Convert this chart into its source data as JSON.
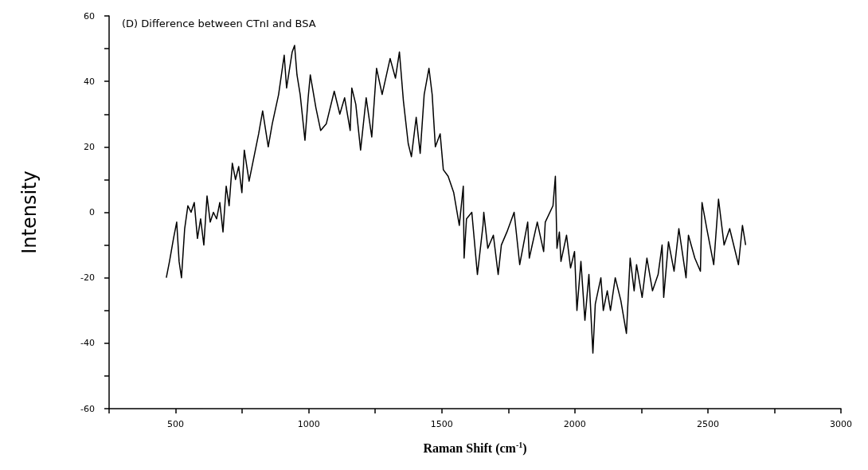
{
  "chart_data": {
    "type": "line",
    "title": "(D) Difference between CTnI and BSA",
    "xlabel": "Raman Shift (cm$^{-1}$)",
    "ylabel": "Intensity",
    "xlim": [
      250,
      3000
    ],
    "xticks": [
      {
        "value": 250,
        "label": null
      },
      500,
      {
        "value": 750,
        "label": null
      },
      1000,
      {
        "value": 1250,
        "label": null
      },
      1500,
      {
        "value": 1750,
        "label": null
      },
      2000,
      {
        "value": 2250,
        "label": null
      },
      2500,
      {
        "value": 2750,
        "label": null
      },
      3000
    ],
    "ylim": [
      -60,
      60
    ],
    "yticks": [
      -60,
      {
        "value": -50,
        "label": null
      },
      -40,
      {
        "value": -30,
        "label": null
      },
      -20,
      {
        "value": -10,
        "label": null
      },
      0,
      {
        "value": 10,
        "label": null
      },
      20,
      {
        "value": 30,
        "label": null
      },
      40,
      {
        "value": 50,
        "label": null
      },
      60
    ],
    "grid": false,
    "marker": "none",
    "line_style": "solid",
    "series": [
      {
        "color": "#000000",
        "x": [
          465,
          477,
          492,
          504,
          513,
          522,
          534,
          546,
          558,
          570,
          582,
          594,
          606,
          618,
          630,
          642,
          654,
          666,
          678,
          690,
          701,
          713,
          725,
          737,
          749,
          758,
          776,
          812,
          827,
          848,
          863,
          887,
          908,
          917,
          938,
          947,
          956,
          968,
          986,
          998,
          1006,
          1027,
          1045,
          1066,
          1096,
          1117,
          1135,
          1156,
          1162,
          1177,
          1195,
          1216,
          1237,
          1255,
          1276,
          1306,
          1326,
          1341,
          1356,
          1374,
          1386,
          1404,
          1419,
          1434,
          1452,
          1464,
          1476,
          1494,
          1506,
          1524,
          1545,
          1566,
          1581,
          1584,
          1593,
          1613,
          1634,
          1655,
          1658,
          1673,
          1694,
          1712,
          1724,
          1745,
          1772,
          1793,
          1823,
          1829,
          1859,
          1883,
          1889,
          1918,
          1927,
          1933,
          1942,
          1948,
          1969,
          1984,
          1999,
          2008,
          2023,
          2038,
          2053,
          2068,
          2077,
          2098,
          2107,
          2122,
          2134,
          2152,
          2173,
          2194,
          2208,
          2223,
          2232,
          2253,
          2271,
          2292,
          2313,
          2328,
          2334,
          2352,
          2373,
          2391,
          2418,
          2427,
          2451,
          2472,
          2478,
          2496,
          2522,
          2540,
          2561,
          2582,
          2615,
          2630,
          2642
        ],
        "values": [
          -20,
          -15,
          -8,
          -3,
          -15,
          -20,
          -5,
          2,
          0,
          3,
          -8,
          -2,
          -10,
          5,
          -3,
          0,
          -2,
          3,
          -6,
          8,
          2,
          15,
          10,
          14,
          6,
          19,
          9.5,
          24,
          31,
          20,
          27,
          36,
          48,
          38,
          49,
          51,
          42,
          36,
          22,
          35,
          42,
          32,
          25,
          27,
          37,
          30,
          35,
          25,
          38,
          33,
          19,
          35,
          23,
          44,
          36,
          47,
          41,
          49,
          34,
          21,
          17,
          29,
          18,
          36,
          44,
          36,
          20,
          24,
          13,
          11,
          6,
          -4,
          8,
          -14,
          -2,
          0,
          -19,
          -4,
          0,
          -11,
          -7,
          -19,
          -10,
          -6,
          0,
          -16,
          -3,
          -14,
          -3,
          -12,
          -3,
          2,
          11,
          -11,
          -6,
          -15,
          -7,
          -17,
          -12,
          -30,
          -15,
          -33,
          -19,
          -43,
          -28,
          -20,
          -30,
          -24,
          -30,
          -20,
          -27,
          -37,
          -14,
          -24,
          -16,
          -26,
          -14,
          -24,
          -19,
          -10,
          -26,
          -9,
          -18,
          -5,
          -20,
          -7,
          -14,
          -18,
          3,
          -5,
          -16,
          4,
          -10,
          -5,
          -16,
          -4,
          -10
        ]
      }
    ]
  }
}
